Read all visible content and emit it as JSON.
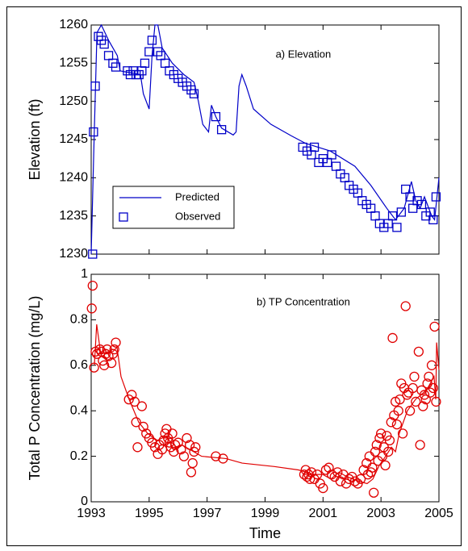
{
  "chart_data": [
    {
      "type": "line",
      "annotation": "a) Elevation",
      "ylabel": "Elevation (ft)",
      "xlim": [
        1993,
        2005
      ],
      "xticks": [
        1993,
        1995,
        1997,
        1999,
        2001,
        2003,
        2005
      ],
      "xtick_labels": false,
      "ylim": [
        1230,
        1260
      ],
      "yticks": [
        1230,
        1235,
        1240,
        1245,
        1250,
        1255,
        1260
      ],
      "legend": "lower left",
      "series": [
        {
          "name": "Predicted",
          "color": "#0000c8",
          "mode": "line",
          "x": [
            1993.0,
            1993.1,
            1993.2,
            1993.35,
            1993.6,
            1993.9,
            1994.0,
            1994.7,
            1994.8,
            1994.95,
            1995.0,
            1995.1,
            1995.2,
            1995.3,
            1995.45,
            1995.8,
            1996.2,
            1996.55,
            1996.7,
            1996.85,
            1997.05,
            1997.15,
            1997.3,
            1997.5,
            1997.9,
            1998.0,
            1998.1,
            1998.2,
            1998.35,
            1998.6,
            1999.2,
            1999.9,
            2000.4,
            2001.25,
            2002.1,
            2002.65,
            2003.2,
            2003.5,
            2003.8,
            2004.05,
            2004.2,
            2004.35,
            2004.5,
            2004.75,
            2004.85,
            2005.0
          ],
          "values": [
            1230,
            1245,
            1259,
            1260,
            1258,
            1256,
            1254,
            1253.5,
            1251,
            1249.5,
            1249,
            1256,
            1260,
            1260,
            1257,
            1255,
            1253.5,
            1252.5,
            1250,
            1247,
            1246,
            1249.5,
            1248,
            1246.5,
            1245.6,
            1246,
            1252,
            1253.5,
            1252,
            1249,
            1247,
            1245.5,
            1244.5,
            1243.5,
            1241.5,
            1239,
            1236,
            1234.5,
            1236,
            1239.5,
            1237,
            1236,
            1237.5,
            1235,
            1234.5,
            1240
          ]
        },
        {
          "name": "Observed",
          "color": "#0000c8",
          "mode": "markers",
          "marker": "square",
          "x": [
            1993.05,
            1993.08,
            1993.14,
            1993.25,
            1993.35,
            1993.45,
            1993.6,
            1993.75,
            1993.85,
            1994.25,
            1994.35,
            1994.45,
            1994.55,
            1994.65,
            1994.75,
            1994.85,
            1995.0,
            1995.1,
            1995.3,
            1995.4,
            1995.55,
            1995.7,
            1995.85,
            1996.0,
            1996.15,
            1996.3,
            1996.45,
            1996.55,
            1997.3,
            1997.5,
            2000.3,
            2000.45,
            2000.6,
            2000.7,
            2000.85,
            2001.0,
            2001.15,
            2001.3,
            2001.45,
            2001.6,
            2001.75,
            2001.9,
            2002.05,
            2002.2,
            2002.35,
            2002.5,
            2002.65,
            2002.8,
            2002.95,
            2003.1,
            2003.25,
            2003.4,
            2003.55,
            2003.7,
            2003.85,
            2004.0,
            2004.1,
            2004.25,
            2004.4,
            2004.55,
            2004.7,
            2004.8,
            2004.9
          ],
          "values": [
            1230,
            1246,
            1252,
            1258.5,
            1258,
            1257.5,
            1256,
            1255,
            1254.5,
            1254,
            1253.5,
            1254,
            1253.5,
            1253.5,
            1254,
            1255,
            1256.5,
            1258,
            1256.5,
            1256,
            1255,
            1254,
            1253.5,
            1253,
            1252.5,
            1252,
            1251.5,
            1251,
            1248,
            1246.3,
            1244,
            1243.5,
            1243,
            1244,
            1242,
            1242.5,
            1242,
            1243,
            1241.5,
            1240.5,
            1240,
            1239,
            1238.5,
            1238,
            1237,
            1236.5,
            1236,
            1235,
            1234,
            1233.5,
            1234,
            1235,
            1233.5,
            1235.5,
            1238.5,
            1237.5,
            1236,
            1237,
            1236.5,
            1235,
            1235.5,
            1234.5,
            1237.5
          ]
        }
      ]
    },
    {
      "type": "line",
      "annotation": "b) TP Concentration",
      "ylabel": "Total P Concentration (mg/L)",
      "xlabel": "Time",
      "xlim": [
        1993,
        2005
      ],
      "xticks": [
        1993,
        1995,
        1997,
        1999,
        2001,
        2003,
        2005
      ],
      "xtick_labels": true,
      "ylim": [
        0,
        1
      ],
      "yticks": [
        0,
        0.2,
        0.4,
        0.6,
        0.8,
        1
      ],
      "series": [
        {
          "color": "#e00000",
          "mode": "line",
          "x": [
            1993.11,
            1993.19,
            1993.33,
            1993.75,
            1993.89,
            1994.03,
            1994.31,
            1994.64,
            1994.95,
            1995.28,
            1995.62,
            1995.84,
            1996.12,
            1996.54,
            1996.81,
            1997.65,
            1998.21,
            1999.32,
            2000.15,
            2000.71,
            2000.99,
            2001.27,
            2001.55,
            2001.83,
            2002.24,
            2002.52,
            2002.72,
            2002.94,
            2003.16,
            2003.36,
            2003.5,
            2003.63,
            2003.91,
            2004.19,
            2004.47,
            2004.61,
            2004.83,
            2004.89,
            2004.92,
            2005.0
          ],
          "values": [
            0.6,
            0.78,
            0.65,
            0.66,
            0.68,
            0.55,
            0.45,
            0.35,
            0.3,
            0.27,
            0.29,
            0.23,
            0.25,
            0.22,
            0.2,
            0.19,
            0.17,
            0.155,
            0.14,
            0.12,
            0.12,
            0.1,
            0.13,
            0.11,
            0.09,
            0.08,
            0.1,
            0.16,
            0.2,
            0.24,
            0.22,
            0.3,
            0.4,
            0.45,
            0.48,
            0.5,
            0.55,
            0.45,
            0.7,
            0.58
          ]
        },
        {
          "color": "#e00000",
          "mode": "markers",
          "marker": "circle",
          "x": [
            1993.02,
            1993.05,
            1993.1,
            1993.15,
            1993.2,
            1993.3,
            1993.35,
            1993.4,
            1993.45,
            1993.5,
            1993.55,
            1993.6,
            1993.7,
            1993.75,
            1993.8,
            1993.85,
            1994.3,
            1994.4,
            1994.5,
            1994.55,
            1994.6,
            1994.75,
            1994.8,
            1994.9,
            1995.0,
            1995.1,
            1995.2,
            1995.3,
            1995.35,
            1995.45,
            1995.5,
            1995.55,
            1995.6,
            1995.65,
            1995.7,
            1995.75,
            1995.8,
            1995.85,
            1995.9,
            1996.0,
            1996.1,
            1996.2,
            1996.3,
            1996.4,
            1996.45,
            1996.5,
            1996.55,
            1996.6,
            1997.3,
            1997.55,
            2000.35,
            2000.4,
            2000.45,
            2000.5,
            2000.55,
            2000.6,
            2000.7,
            2000.8,
            2000.9,
            2001.0,
            2001.1,
            2001.2,
            2001.3,
            2001.4,
            2001.5,
            2001.6,
            2001.7,
            2001.8,
            2001.9,
            2002.0,
            2002.1,
            2002.2,
            2002.3,
            2002.4,
            2002.5,
            2002.55,
            2002.6,
            2002.65,
            2002.7,
            2002.75,
            2002.8,
            2002.85,
            2002.9,
            2002.95,
            2003.0,
            2003.05,
            2003.1,
            2003.15,
            2003.2,
            2003.25,
            2003.3,
            2003.35,
            2003.4,
            2003.45,
            2003.5,
            2003.55,
            2003.6,
            2003.65,
            2003.7,
            2003.75,
            2003.8,
            2003.85,
            2003.9,
            2003.95,
            2004.0,
            2004.1,
            2004.15,
            2004.2,
            2004.3,
            2004.35,
            2004.4,
            2004.45,
            2004.5,
            2004.55,
            2004.6,
            2004.65,
            2004.7,
            2004.75,
            2004.8,
            2004.85,
            2004.9
          ],
          "values": [
            0.85,
            0.95,
            0.59,
            0.66,
            0.65,
            0.67,
            0.66,
            0.62,
            0.6,
            0.65,
            0.67,
            0.64,
            0.61,
            0.65,
            0.67,
            0.7,
            0.45,
            0.47,
            0.44,
            0.35,
            0.24,
            0.42,
            0.33,
            0.3,
            0.28,
            0.26,
            0.24,
            0.21,
            0.25,
            0.23,
            0.27,
            0.3,
            0.32,
            0.28,
            0.26,
            0.24,
            0.3,
            0.22,
            0.25,
            0.26,
            0.23,
            0.2,
            0.28,
            0.25,
            0.13,
            0.17,
            0.22,
            0.24,
            0.2,
            0.19,
            0.12,
            0.14,
            0.11,
            0.12,
            0.1,
            0.13,
            0.1,
            0.12,
            0.08,
            0.06,
            0.14,
            0.15,
            0.12,
            0.11,
            0.13,
            0.09,
            0.12,
            0.08,
            0.1,
            0.11,
            0.09,
            0.08,
            0.1,
            0.14,
            0.17,
            0.12,
            0.2,
            0.13,
            0.15,
            0.04,
            0.22,
            0.25,
            0.18,
            0.28,
            0.3,
            0.2,
            0.24,
            0.16,
            0.29,
            0.22,
            0.27,
            0.35,
            0.72,
            0.38,
            0.44,
            0.34,
            0.4,
            0.45,
            0.52,
            0.3,
            0.5,
            0.86,
            0.47,
            0.48,
            0.4,
            0.5,
            0.55,
            0.44,
            0.66,
            0.25,
            0.49,
            0.42,
            0.47,
            0.45,
            0.52,
            0.55,
            0.48,
            0.6,
            0.5,
            0.77,
            0.44
          ]
        }
      ]
    }
  ]
}
